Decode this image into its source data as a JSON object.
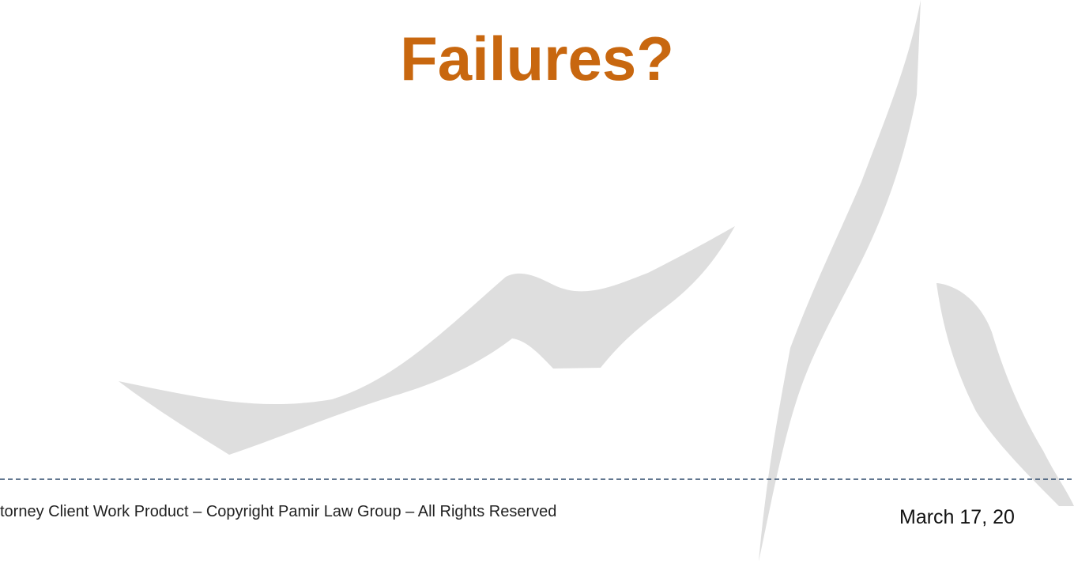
{
  "slide": {
    "title": "Failures?",
    "footer": "torney Client Work Product – Copyright Pamir Law Group – All Rights Reserved",
    "date": "March 17, 20"
  }
}
